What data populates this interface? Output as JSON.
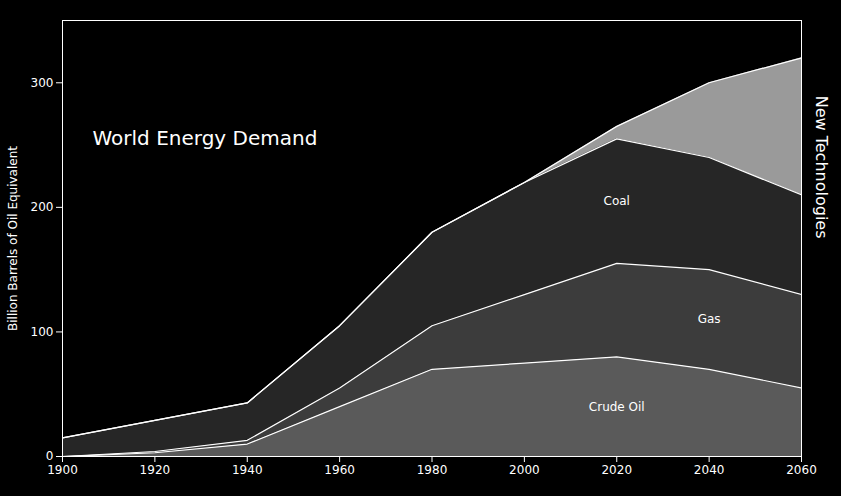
{
  "chart_data": {
    "type": "area",
    "title": "World Energy Demand",
    "y_label": "Billion Barrels of Oil Equivalent",
    "stacked": true,
    "grid": false,
    "x": [
      1900,
      1920,
      1940,
      1960,
      1980,
      2000,
      2020,
      2040,
      2060
    ],
    "series": [
      {
        "name": "Crude Oil",
        "color": "#5a5a5a",
        "values": [
          0,
          3,
          10,
          40,
          70,
          75,
          80,
          70,
          55
        ]
      },
      {
        "name": "Gas",
        "color": "#3c3c3c",
        "values": [
          0,
          1,
          3,
          15,
          35,
          55,
          75,
          80,
          75
        ]
      },
      {
        "name": "Coal",
        "color": "#262626",
        "values": [
          15,
          25,
          30,
          50,
          75,
          90,
          100,
          90,
          80
        ]
      },
      {
        "name": "New Technologies",
        "color": "#9a9a9a",
        "values": [
          0,
          0,
          0,
          0,
          0,
          0,
          10,
          60,
          110
        ]
      }
    ],
    "xlim": [
      1900,
      2060
    ],
    "xticks": [
      1900,
      1920,
      1940,
      1960,
      1980,
      2000,
      2020,
      2040,
      2060
    ],
    "ylim": [
      0,
      350
    ],
    "yticks": [
      0,
      100,
      200,
      300
    ]
  }
}
